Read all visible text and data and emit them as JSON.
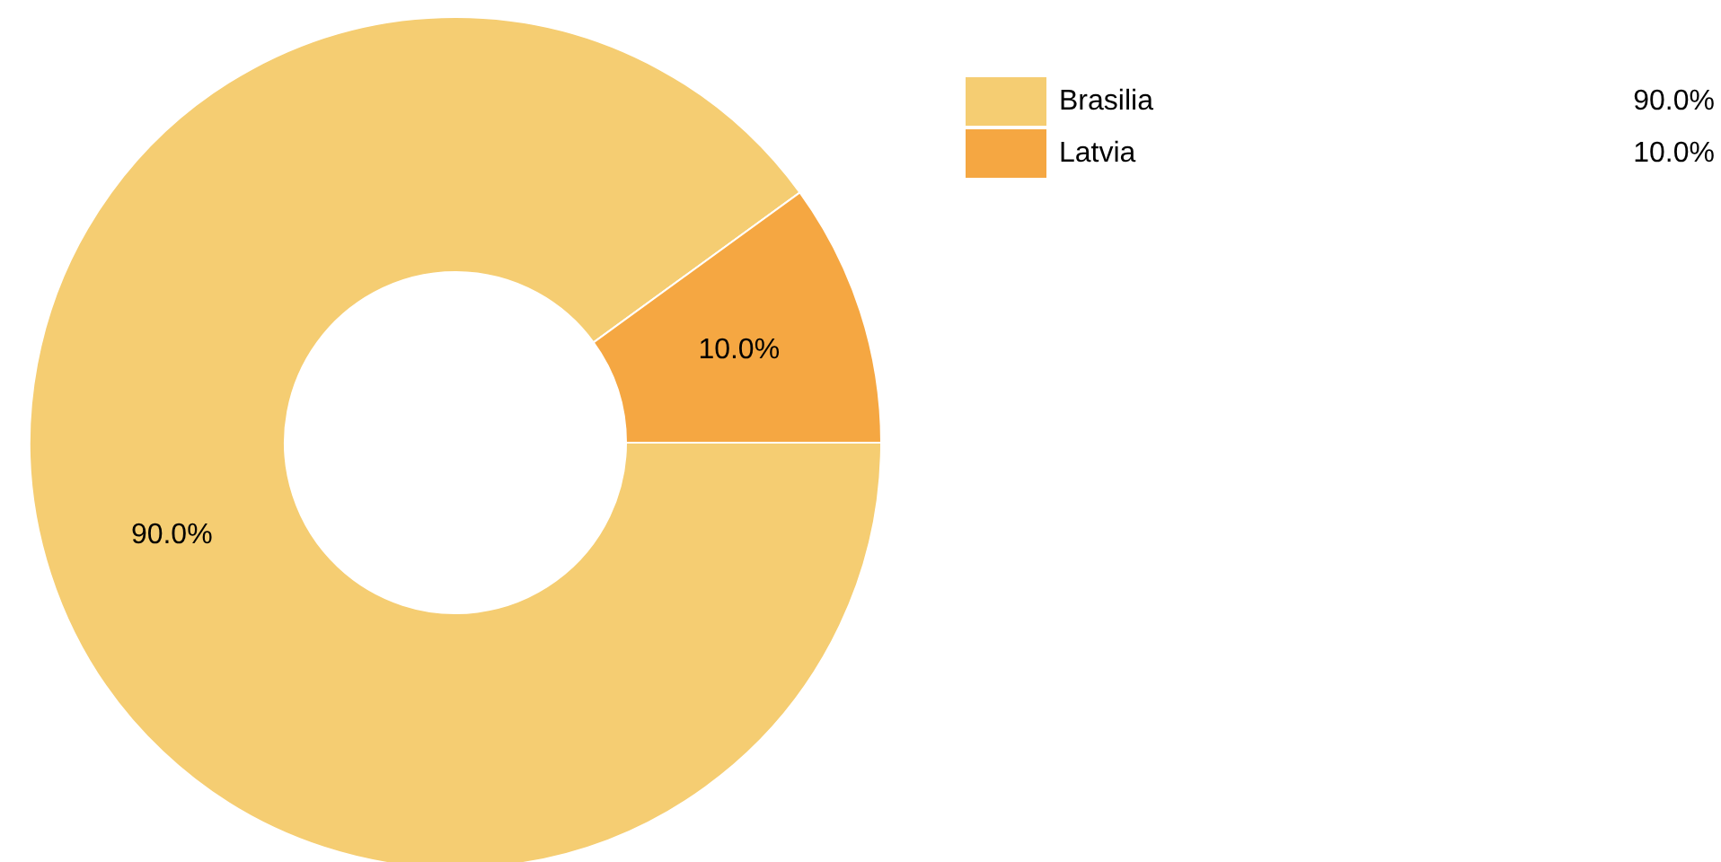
{
  "chart_data": {
    "type": "donut",
    "categories": [
      "Brasilia",
      "Latvia"
    ],
    "values": [
      90,
      10
    ],
    "colors": [
      "#f5cd72",
      "#f5a742"
    ],
    "value_labels": [
      "90.0%",
      "10.0%"
    ],
    "legend": "top right"
  }
}
